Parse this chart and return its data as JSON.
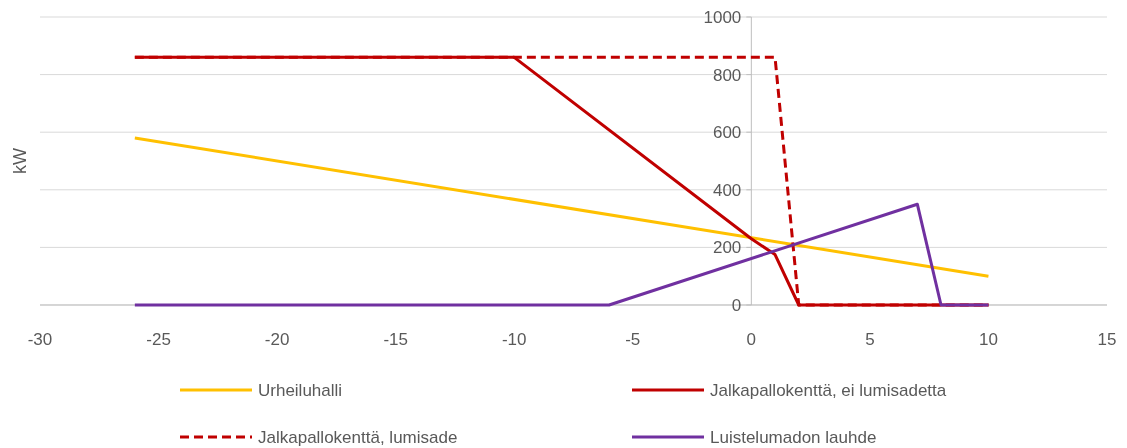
{
  "chart_data": {
    "type": "line",
    "ylabel": "kW",
    "xlim": [
      -30,
      15
    ],
    "xticks": [
      -30,
      -25,
      -20,
      -15,
      -10,
      -5,
      0,
      5,
      10,
      15
    ],
    "ylim": [
      0,
      1000
    ],
    "yticks": [
      0,
      200,
      400,
      600,
      800,
      1000
    ],
    "grid": "y",
    "legend": "bottom",
    "marker": "none",
    "series": [
      {
        "name": "Urheiluhalli",
        "color": "#ffc000",
        "x": [
          -26,
          10
        ],
        "values": [
          580,
          100
        ]
      },
      {
        "name": "Jalkapallokenttä, ei lumisadetta",
        "color": "#c00000",
        "x": [
          -26,
          -10,
          0,
          1,
          2,
          10
        ],
        "values": [
          860,
          860,
          230,
          175,
          0,
          0
        ]
      },
      {
        "name": "Jalkapallokenttä, lumisade",
        "color": "#c00000",
        "line_style": "dashed",
        "x": [
          -26,
          1,
          2,
          10
        ],
        "values": [
          860,
          860,
          0,
          0
        ]
      },
      {
        "name": "Luistelumadon lauhde",
        "color": "#7030a0",
        "x": [
          -26,
          -6,
          7,
          8,
          10
        ],
        "values": [
          0,
          0,
          350,
          0,
          0
        ]
      }
    ]
  }
}
